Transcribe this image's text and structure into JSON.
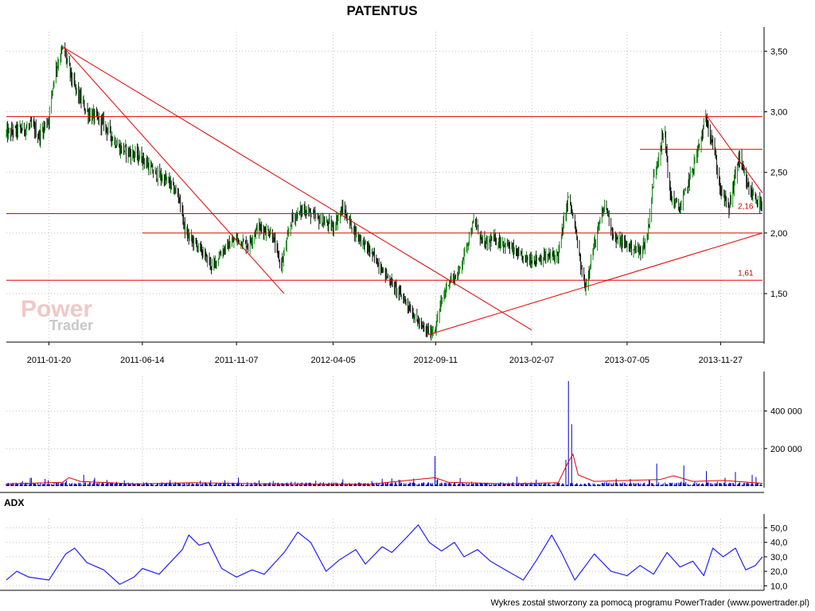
{
  "header": {
    "title": "PATENTUS"
  },
  "watermark": {
    "line1": "Power",
    "line2": "Trader"
  },
  "footer": {
    "text": "Wykres został stworzony za pomocą programu PowerTrader (www.powertrader.pl)"
  },
  "colors": {
    "candle_up": "#007700",
    "candle_down": "#000000",
    "trendline": "#e00000",
    "grid": "#bfbfbf",
    "volume": "#0000cc",
    "volume_ma": "#e00000",
    "adx": "#2020ff"
  },
  "chart_data": [
    {
      "type": "candlestick",
      "name": "price",
      "title": "PATENTUS",
      "x_tick_labels": [
        "2011-01-20",
        "2011-06-14",
        "2011-11-07",
        "2012-04-05",
        "2012-09-11",
        "2013-02-07",
        "2013-07-05",
        "2013-11-27"
      ],
      "x_range": [
        "2010-11-15",
        "2014-01-31"
      ],
      "y_tick_labels": [
        "1,50",
        "2,00",
        "2,50",
        "3,00",
        "3,50"
      ],
      "ylim": [
        1.1,
        3.62
      ],
      "grid": true,
      "price_path": [
        [
          "2010-11-15",
          2.82
        ],
        [
          "2010-12-05",
          2.85
        ],
        [
          "2010-12-25",
          2.88
        ],
        [
          "2011-01-05",
          2.8
        ],
        [
          "2011-01-20",
          2.95
        ],
        [
          "2011-01-28",
          3.3
        ],
        [
          "2011-02-05",
          3.45
        ],
        [
          "2011-02-12",
          3.52
        ],
        [
          "2011-02-20",
          3.35
        ],
        [
          "2011-03-01",
          3.2
        ],
        [
          "2011-03-20",
          3.0
        ],
        [
          "2011-04-15",
          2.9
        ],
        [
          "2011-05-10",
          2.7
        ],
        [
          "2011-06-01",
          2.65
        ],
        [
          "2011-06-14",
          2.62
        ],
        [
          "2011-07-01",
          2.5
        ],
        [
          "2011-07-25",
          2.42
        ],
        [
          "2011-08-10",
          2.3
        ],
        [
          "2011-08-20",
          2.0
        ],
        [
          "2011-09-10",
          1.88
        ],
        [
          "2011-10-01",
          1.72
        ],
        [
          "2011-10-15",
          1.85
        ],
        [
          "2011-11-07",
          1.95
        ],
        [
          "2011-11-25",
          1.9
        ],
        [
          "2011-12-10",
          2.05
        ],
        [
          "2012-01-01",
          2.0
        ],
        [
          "2012-01-15",
          1.72
        ],
        [
          "2012-02-01",
          2.12
        ],
        [
          "2012-02-20",
          2.2
        ],
        [
          "2012-03-10",
          2.12
        ],
        [
          "2012-04-05",
          2.05
        ],
        [
          "2012-04-20",
          2.2
        ],
        [
          "2012-05-10",
          2.0
        ],
        [
          "2012-06-01",
          1.85
        ],
        [
          "2012-06-20",
          1.7
        ],
        [
          "2012-07-10",
          1.55
        ],
        [
          "2012-07-25",
          1.45
        ],
        [
          "2012-08-10",
          1.3
        ],
        [
          "2012-08-25",
          1.2
        ],
        [
          "2012-09-05",
          1.18
        ],
        [
          "2012-09-11",
          1.22
        ],
        [
          "2012-09-18",
          1.4
        ],
        [
          "2012-10-01",
          1.6
        ],
        [
          "2012-10-15",
          1.65
        ],
        [
          "2012-11-01",
          1.95
        ],
        [
          "2012-11-10",
          2.1
        ],
        [
          "2012-11-25",
          1.9
        ],
        [
          "2012-12-10",
          1.95
        ],
        [
          "2013-01-01",
          1.9
        ],
        [
          "2013-01-20",
          1.8
        ],
        [
          "2013-02-07",
          1.78
        ],
        [
          "2013-03-01",
          1.8
        ],
        [
          "2013-03-20",
          1.82
        ],
        [
          "2013-04-05",
          2.3
        ],
        [
          "2013-04-15",
          2.05
        ],
        [
          "2013-04-25",
          1.7
        ],
        [
          "2013-05-01",
          1.55
        ],
        [
          "2013-05-15",
          1.9
        ],
        [
          "2013-06-01",
          2.25
        ],
        [
          "2013-06-15",
          1.95
        ],
        [
          "2013-07-05",
          1.9
        ],
        [
          "2013-07-25",
          1.85
        ],
        [
          "2013-08-05",
          1.95
        ],
        [
          "2013-08-15",
          2.45
        ],
        [
          "2013-08-25",
          2.7
        ],
        [
          "2013-09-01",
          2.85
        ],
        [
          "2013-09-10",
          2.3
        ],
        [
          "2013-09-25",
          2.2
        ],
        [
          "2013-10-10",
          2.45
        ],
        [
          "2013-10-25",
          2.72
        ],
        [
          "2013-11-05",
          2.95
        ],
        [
          "2013-11-15",
          2.75
        ],
        [
          "2013-11-27",
          2.35
        ],
        [
          "2013-12-10",
          2.2
        ],
        [
          "2013-12-25",
          2.62
        ],
        [
          "2014-01-10",
          2.35
        ],
        [
          "2014-01-20",
          2.3
        ],
        [
          "2014-01-30",
          2.2
        ]
      ],
      "horizontal_lines": [
        {
          "y": 2.96,
          "from": "2010-11-15",
          "to": "2014-01-31"
        },
        {
          "y": 2.69,
          "from": "2013-07-25",
          "to": "2014-01-31"
        },
        {
          "y": 2.16,
          "from": "2010-11-15",
          "to": "2014-01-31"
        },
        {
          "y": 2.0,
          "from": "2011-06-14",
          "to": "2014-01-31"
        },
        {
          "y": 1.61,
          "from": "2010-11-15",
          "to": "2014-01-31"
        }
      ],
      "trend_lines": [
        {
          "from": [
            "2011-02-12",
            3.53
          ],
          "to": [
            "2012-01-20",
            1.5
          ]
        },
        {
          "from": [
            "2011-02-12",
            3.53
          ],
          "to": [
            "2013-02-07",
            1.2
          ]
        },
        {
          "from": [
            "2012-08-30",
            1.16
          ],
          "to": [
            "2014-01-31",
            2.0
          ]
        },
        {
          "from": [
            "2013-11-05",
            2.97
          ],
          "to": [
            "2014-01-31",
            2.33
          ]
        }
      ],
      "annotations": [
        {
          "text": "2,16",
          "x": "2014-01-20",
          "y": 2.16
        },
        {
          "text": "1,61",
          "x": "2014-01-20",
          "y": 1.61
        }
      ]
    },
    {
      "type": "bar",
      "name": "volume",
      "y_tick_labels": [
        "200 000",
        "400 000"
      ],
      "ylim": [
        0,
        560000
      ],
      "grid": true,
      "spikes": [
        [
          "2011-02-12",
          80000
        ],
        [
          "2011-03-15",
          60000
        ],
        [
          "2011-08-20",
          55000
        ],
        [
          "2011-11-10",
          45000
        ],
        [
          "2012-02-05",
          50000
        ],
        [
          "2012-05-20",
          35000
        ],
        [
          "2012-08-25",
          55000
        ],
        [
          "2012-09-10",
          160000
        ],
        [
          "2012-10-20",
          60000
        ],
        [
          "2013-01-15",
          50000
        ],
        [
          "2013-03-10",
          70000
        ],
        [
          "2013-04-01",
          140000
        ],
        [
          "2013-04-05",
          560000
        ],
        [
          "2013-04-10",
          330000
        ],
        [
          "2013-04-20",
          120000
        ],
        [
          "2013-06-01",
          75000
        ],
        [
          "2013-08-20",
          120000
        ],
        [
          "2013-09-01",
          140000
        ],
        [
          "2013-10-01",
          110000
        ],
        [
          "2013-11-05",
          80000
        ],
        [
          "2013-12-20",
          75000
        ],
        [
          "2014-01-15",
          60000
        ]
      ],
      "moving_average_points": [
        [
          "2010-11-15",
          12000
        ],
        [
          "2011-02-10",
          20000
        ],
        [
          "2011-02-20",
          45000
        ],
        [
          "2011-03-10",
          25000
        ],
        [
          "2011-06-01",
          12000
        ],
        [
          "2011-09-01",
          18000
        ],
        [
          "2012-01-01",
          12000
        ],
        [
          "2012-06-01",
          10000
        ],
        [
          "2012-09-10",
          45000
        ],
        [
          "2012-10-01",
          20000
        ],
        [
          "2013-01-01",
          12000
        ],
        [
          "2013-03-20",
          18000
        ],
        [
          "2013-04-05",
          130000
        ],
        [
          "2013-04-12",
          170000
        ],
        [
          "2013-04-20",
          60000
        ],
        [
          "2013-05-15",
          25000
        ],
        [
          "2013-08-25",
          35000
        ],
        [
          "2013-09-15",
          55000
        ],
        [
          "2013-10-15",
          25000
        ],
        [
          "2013-12-01",
          30000
        ],
        [
          "2014-01-31",
          15000
        ]
      ]
    },
    {
      "type": "line",
      "name": "ADX",
      "label": "ADX",
      "y_tick_labels": [
        "10,0",
        "20,0",
        "30,0",
        "40,0",
        "50,0"
      ],
      "ylim": [
        8,
        53
      ],
      "grid": true,
      "values": [
        [
          "2010-11-15",
          14
        ],
        [
          "2010-12-01",
          20
        ],
        [
          "2010-12-20",
          16
        ],
        [
          "2011-01-20",
          14
        ],
        [
          "2011-02-15",
          32
        ],
        [
          "2011-03-01",
          36
        ],
        [
          "2011-03-20",
          26
        ],
        [
          "2011-04-15",
          21
        ],
        [
          "2011-05-10",
          11
        ],
        [
          "2011-06-01",
          16
        ],
        [
          "2011-06-14",
          22
        ],
        [
          "2011-07-10",
          18
        ],
        [
          "2011-08-15",
          35
        ],
        [
          "2011-08-25",
          45
        ],
        [
          "2011-09-10",
          38
        ],
        [
          "2011-09-25",
          40
        ],
        [
          "2011-10-15",
          22
        ],
        [
          "2011-11-07",
          16
        ],
        [
          "2011-12-01",
          21
        ],
        [
          "2011-12-20",
          18
        ],
        [
          "2012-01-20",
          33
        ],
        [
          "2012-02-10",
          47
        ],
        [
          "2012-03-01",
          40
        ],
        [
          "2012-03-25",
          20
        ],
        [
          "2012-04-15",
          28
        ],
        [
          "2012-05-10",
          35
        ],
        [
          "2012-05-25",
          25
        ],
        [
          "2012-06-20",
          37
        ],
        [
          "2012-07-05",
          33
        ],
        [
          "2012-07-25",
          42
        ],
        [
          "2012-08-15",
          52
        ],
        [
          "2012-09-01",
          40
        ],
        [
          "2012-09-20",
          34
        ],
        [
          "2012-10-10",
          40
        ],
        [
          "2012-10-25",
          30
        ],
        [
          "2012-11-15",
          35
        ],
        [
          "2012-12-05",
          27
        ],
        [
          "2013-01-01",
          20
        ],
        [
          "2013-01-25",
          14
        ],
        [
          "2013-02-15",
          28
        ],
        [
          "2013-03-10",
          45
        ],
        [
          "2013-03-25",
          33
        ],
        [
          "2013-04-15",
          14
        ],
        [
          "2013-05-15",
          32
        ],
        [
          "2013-06-10",
          20
        ],
        [
          "2013-07-05",
          17
        ],
        [
          "2013-07-25",
          24
        ],
        [
          "2013-08-15",
          18
        ],
        [
          "2013-09-05",
          33
        ],
        [
          "2013-09-25",
          23
        ],
        [
          "2013-10-15",
          27
        ],
        [
          "2013-11-01",
          17
        ],
        [
          "2013-11-15",
          36
        ],
        [
          "2013-12-01",
          30
        ],
        [
          "2013-12-20",
          36
        ],
        [
          "2014-01-05",
          21
        ],
        [
          "2014-01-20",
          24
        ],
        [
          "2014-01-31",
          30
        ]
      ]
    }
  ]
}
